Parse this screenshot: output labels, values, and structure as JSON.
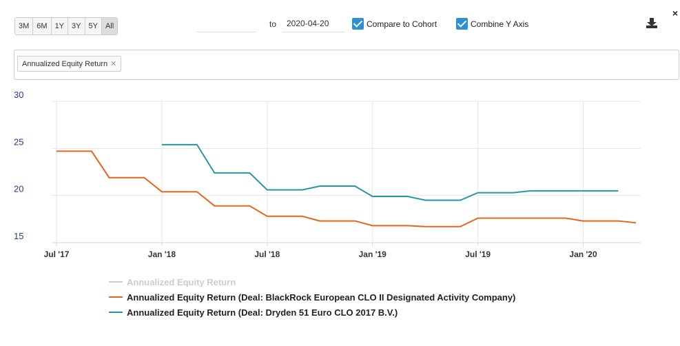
{
  "toolbar": {
    "ranges": [
      "3M",
      "6M",
      "1Y",
      "3Y",
      "5Y",
      "All"
    ],
    "active_range": "All",
    "to_label": "to",
    "end_date": "2020-04-20",
    "checkboxes": [
      "Compare to Cohort",
      "Combine Y Axis"
    ]
  },
  "tags": [
    "Annualized Equity Return"
  ],
  "chart_data": {
    "type": "line",
    "x": [
      "2017-07",
      "2017-08",
      "2017-09",
      "2017-10",
      "2017-11",
      "2017-12",
      "2018-01",
      "2018-02",
      "2018-03",
      "2018-04",
      "2018-05",
      "2018-06",
      "2018-07",
      "2018-08",
      "2018-09",
      "2018-10",
      "2018-11",
      "2018-12",
      "2019-01",
      "2019-02",
      "2019-03",
      "2019-04",
      "2019-05",
      "2019-06",
      "2019-07",
      "2019-08",
      "2019-09",
      "2019-10",
      "2019-11",
      "2019-12",
      "2020-01",
      "2020-02",
      "2020-03",
      "2020-04"
    ],
    "series": [
      {
        "name": "Annualized Equity Return",
        "color": "#cccccc",
        "values": [
          null,
          null,
          null,
          null,
          null,
          null,
          null,
          null,
          null,
          null,
          null,
          null,
          null,
          null,
          null,
          null,
          null,
          null,
          null,
          null,
          null,
          null,
          null,
          null,
          null,
          null,
          null,
          null,
          null,
          null,
          null,
          null,
          null,
          null
        ]
      },
      {
        "name": "Annualized Equity Return (Deal: BlackRock European CLO II Designated Activity Company)",
        "color": "#e8641b",
        "values": [
          24.7,
          24.7,
          24.7,
          21.9,
          21.9,
          21.9,
          20.4,
          20.4,
          20.4,
          18.9,
          18.9,
          18.9,
          17.8,
          17.8,
          17.8,
          17.3,
          17.3,
          17.3,
          16.8,
          16.8,
          16.8,
          16.7,
          16.7,
          16.7,
          17.6,
          17.6,
          17.6,
          17.6,
          17.6,
          17.6,
          17.3,
          17.3,
          17.3,
          17.1
        ]
      },
      {
        "name": "Annualized Equity Return (Deal: Dryden 51 Euro CLO 2017 B.V.)",
        "color": "#2596a8",
        "values": [
          null,
          null,
          null,
          null,
          null,
          null,
          25.4,
          25.4,
          25.4,
          22.4,
          22.4,
          22.4,
          20.6,
          20.6,
          20.6,
          21.0,
          21.0,
          21.0,
          19.9,
          19.9,
          19.9,
          19.5,
          19.5,
          19.5,
          20.3,
          20.3,
          20.3,
          20.5,
          20.5,
          20.5,
          20.5,
          20.5,
          20.5,
          null
        ]
      }
    ],
    "xlim": [
      "2017-07",
      "2020-04"
    ],
    "xticks": [
      {
        "value": "2017-07",
        "label": "Jul '17"
      },
      {
        "value": "2018-01",
        "label": "Jan '18"
      },
      {
        "value": "2018-07",
        "label": "Jul '18"
      },
      {
        "value": "2019-01",
        "label": "Jan '19"
      },
      {
        "value": "2019-07",
        "label": "Jul '19"
      },
      {
        "value": "2020-01",
        "label": "Jan '20"
      }
    ],
    "ylim": [
      15,
      30
    ],
    "yticks": [
      15,
      20,
      25,
      30
    ],
    "grid": true
  }
}
